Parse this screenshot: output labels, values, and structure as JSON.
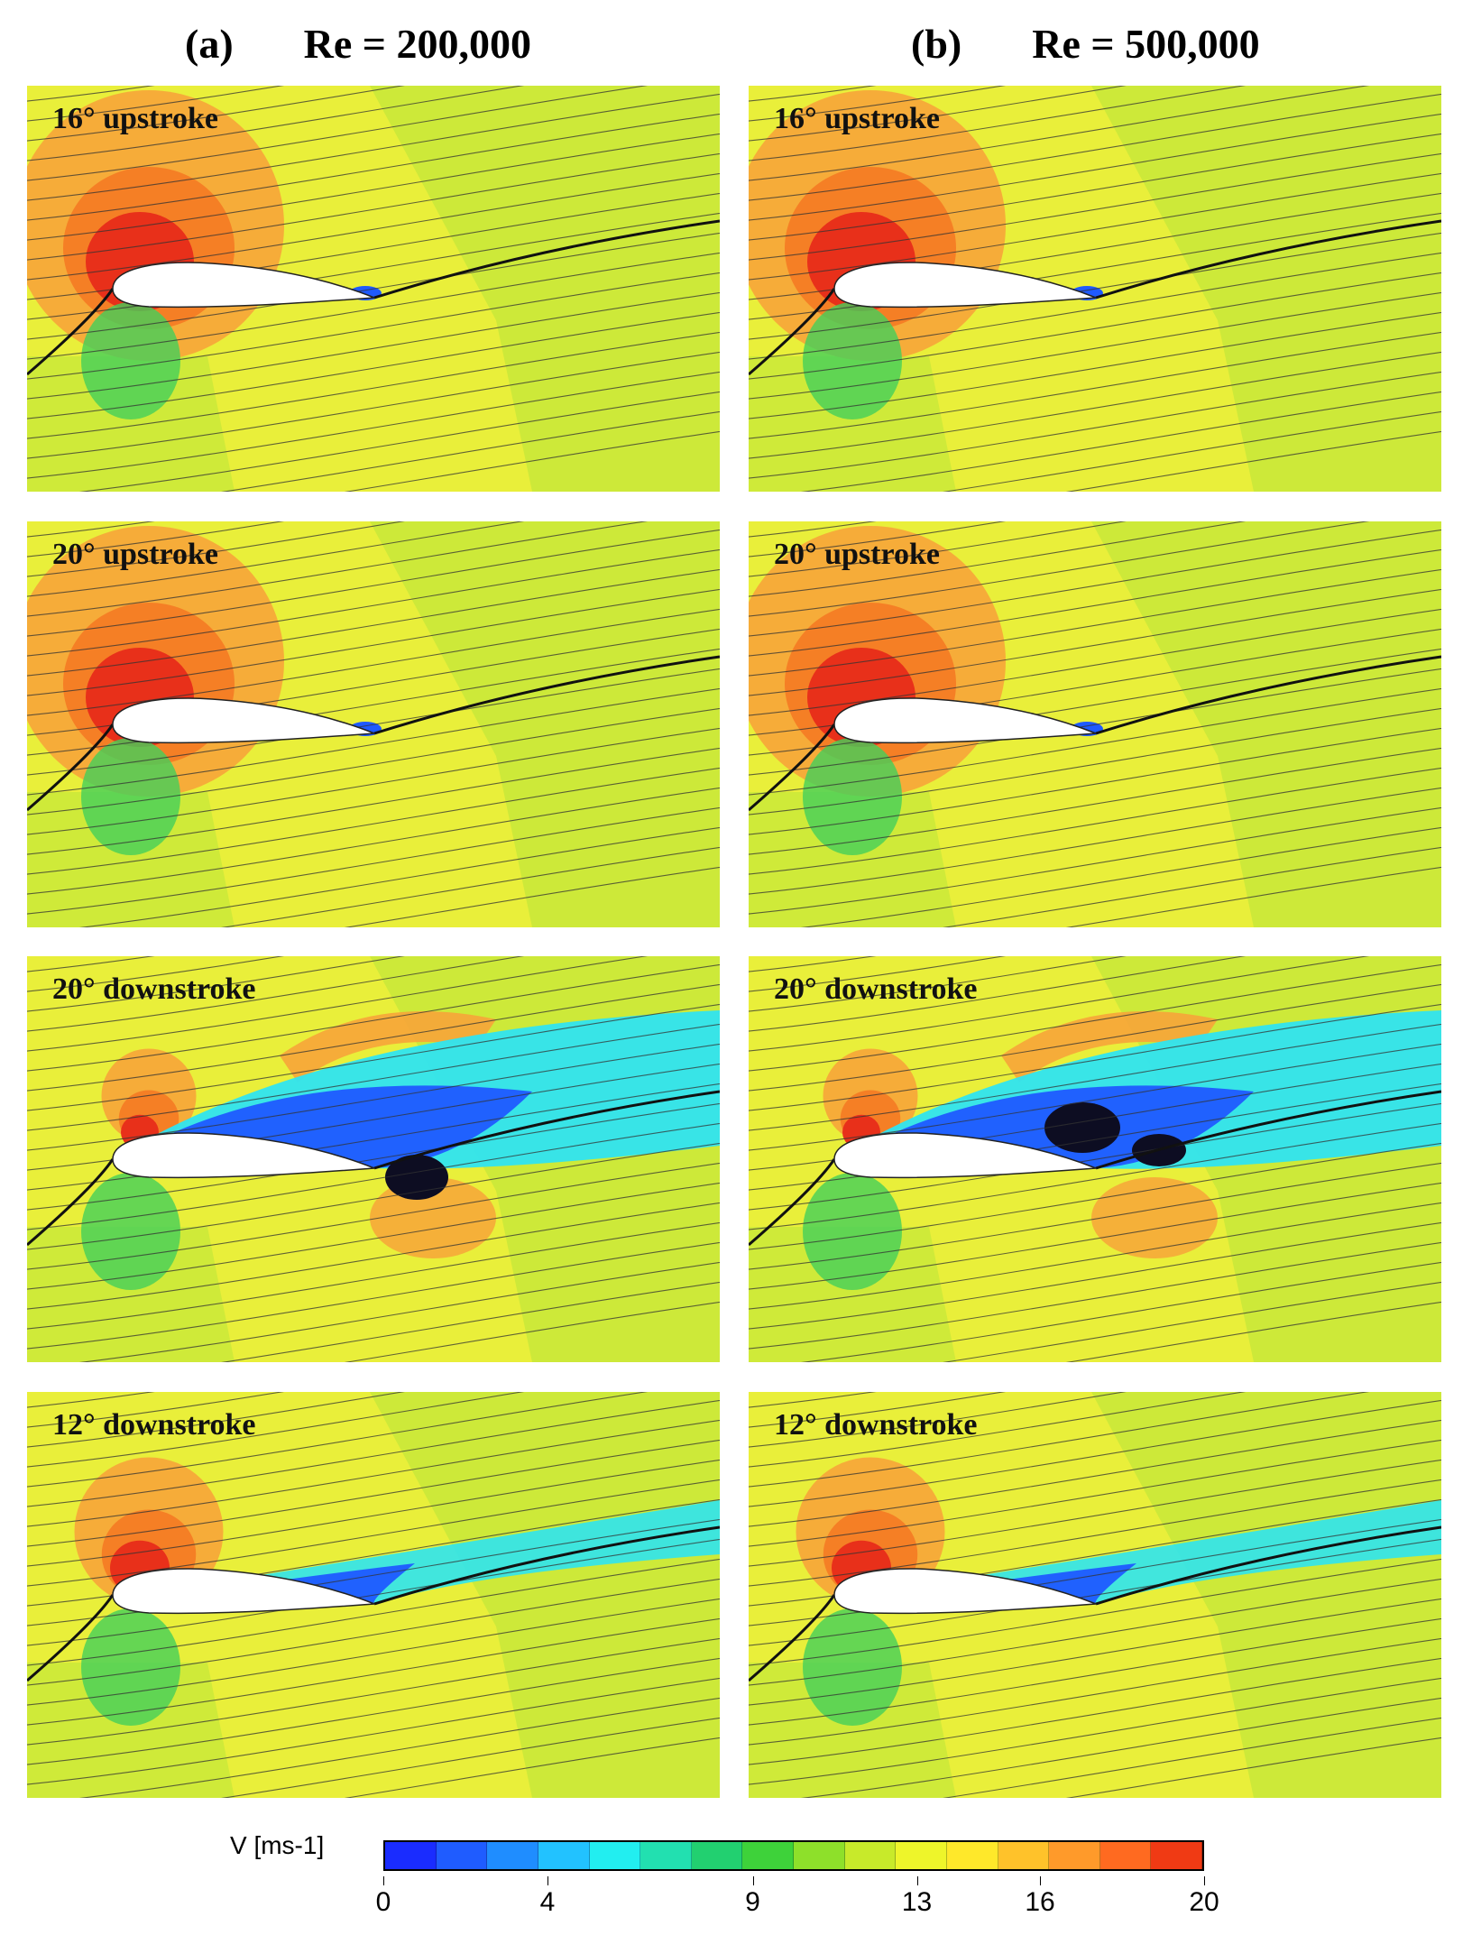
{
  "headers": {
    "a": {
      "tag": "(a)",
      "title": "Re = 200,000"
    },
    "b": {
      "tag": "(b)",
      "title": "Re = 500,000"
    }
  },
  "panels": [
    {
      "label": "16° upstroke",
      "column": "a",
      "row": 0
    },
    {
      "label": "16° upstroke",
      "column": "b",
      "row": 0
    },
    {
      "label": "20° upstroke",
      "column": "a",
      "row": 1
    },
    {
      "label": "20° upstroke",
      "column": "b",
      "row": 1
    },
    {
      "label": "20° downstroke",
      "column": "a",
      "row": 2
    },
    {
      "label": "20° downstroke",
      "column": "b",
      "row": 2
    },
    {
      "label": "12° downstroke",
      "column": "a",
      "row": 3
    },
    {
      "label": "12° downstroke",
      "column": "b",
      "row": 3
    }
  ],
  "colorbar": {
    "label": "V [ms-1]",
    "min": 0,
    "max": 20,
    "ticks": [
      {
        "value": 0,
        "text": "0"
      },
      {
        "value": 4,
        "text": "4"
      },
      {
        "value": 9,
        "text": "9"
      },
      {
        "value": 13,
        "text": "13"
      },
      {
        "value": 16,
        "text": "16"
      },
      {
        "value": 20,
        "text": "20"
      }
    ],
    "colors": [
      "#1a2cff",
      "#1f5cff",
      "#1f8dff",
      "#22c2ff",
      "#22eef0",
      "#22e0b0",
      "#22d070",
      "#3ed23a",
      "#8ee02a",
      "#c8ea2a",
      "#eef52a",
      "#ffe82a",
      "#ffc22a",
      "#ff9a2a",
      "#ff6a20",
      "#f03a14"
    ]
  },
  "colors": {
    "field_yellow": "#e9ef3a",
    "field_yellowgreen": "#c8e83a",
    "high_orange": "#f7a43a",
    "high_red": "#e8301a",
    "low_green": "#43d05a",
    "low_cyan": "#2fe4f0",
    "low_blue": "#1f5aff",
    "streamline": "#333333",
    "airfoil": "#ffffff"
  }
}
